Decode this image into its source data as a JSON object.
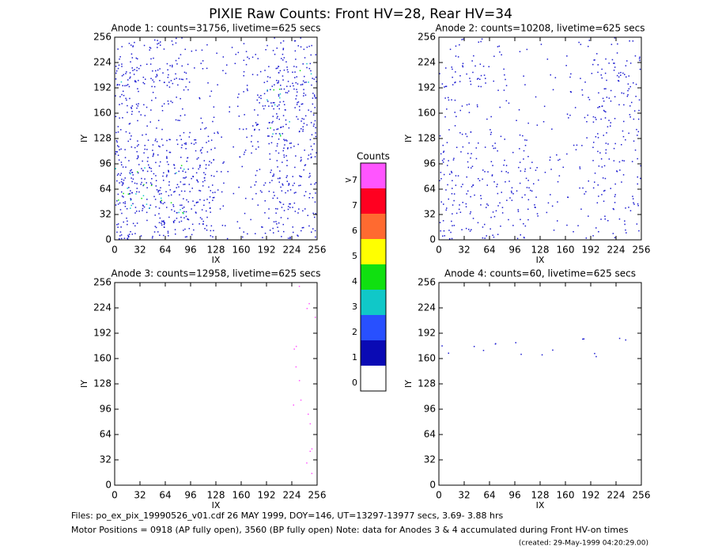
{
  "title": "PIXIE Raw Counts:  Front HV=28, Rear HV=34",
  "chart_data": [
    {
      "type": "density",
      "title": "Anode 1: counts=31756, livetime=625 secs",
      "x_label": "IX",
      "y_label": "IY",
      "xlim": [
        0,
        256
      ],
      "ylim": [
        0,
        256
      ],
      "xticks": [
        0,
        32,
        64,
        96,
        128,
        160,
        192,
        224,
        256
      ],
      "yticks": [
        0,
        32,
        64,
        96,
        128,
        160,
        192,
        224,
        256
      ],
      "color": "#1a1ad0",
      "density": [
        [
          0.3,
          0.3,
          0.2,
          0.1,
          0.1,
          0.2,
          0.3,
          0.3
        ],
        [
          0.8,
          0.5,
          0.6,
          0.1,
          0.1,
          0.2,
          0.6,
          0.7
        ],
        [
          0.5,
          0.2,
          0.2,
          0.1,
          0.1,
          0.3,
          0.7,
          0.6
        ],
        [
          0.3,
          0.2,
          0.2,
          0.2,
          0.1,
          0.3,
          0.7,
          0.5
        ],
        [
          0.6,
          0.5,
          0.5,
          0.5,
          0.1,
          0.2,
          0.6,
          0.4
        ],
        [
          0.8,
          0.7,
          0.7,
          0.6,
          0.1,
          0.2,
          0.5,
          0.4
        ],
        [
          0.8,
          0.7,
          0.7,
          0.6,
          0.1,
          0.2,
          0.5,
          0.4
        ],
        [
          0.6,
          0.5,
          0.5,
          0.4,
          0.1,
          0.2,
          0.4,
          0.3
        ]
      ]
    },
    {
      "type": "density",
      "title": "Anode 2: counts=10208, livetime=625 secs",
      "x_label": "IX",
      "y_label": "IY",
      "xlim": [
        0,
        256
      ],
      "ylim": [
        0,
        256
      ],
      "xticks": [
        0,
        32,
        64,
        96,
        128,
        160,
        192,
        224,
        256
      ],
      "yticks": [
        0,
        32,
        64,
        96,
        128,
        160,
        192,
        224,
        256
      ],
      "color": "#1a1ad0",
      "density": [
        [
          0.15,
          0.1,
          0.1,
          0.05,
          0.05,
          0.1,
          0.15,
          0.2
        ],
        [
          0.4,
          0.4,
          0.1,
          0.05,
          0.05,
          0.1,
          0.3,
          0.4
        ],
        [
          0.2,
          0.1,
          0.1,
          0.05,
          0.05,
          0.15,
          0.4,
          0.3
        ],
        [
          0.15,
          0.1,
          0.1,
          0.1,
          0.05,
          0.15,
          0.35,
          0.25
        ],
        [
          0.3,
          0.2,
          0.2,
          0.2,
          0.1,
          0.1,
          0.3,
          0.2
        ],
        [
          0.35,
          0.3,
          0.3,
          0.3,
          0.1,
          0.1,
          0.25,
          0.2
        ],
        [
          0.35,
          0.3,
          0.3,
          0.3,
          0.1,
          0.1,
          0.25,
          0.2
        ],
        [
          0.3,
          0.25,
          0.2,
          0.2,
          0.05,
          0.1,
          0.2,
          0.15
        ]
      ]
    },
    {
      "type": "density",
      "title": "Anode 3: counts=12958, livetime=625 secs",
      "x_label": "IX",
      "y_label": "IY",
      "xlim": [
        0,
        256
      ],
      "ylim": [
        0,
        256
      ],
      "xticks": [
        0,
        32,
        64,
        96,
        128,
        160,
        192,
        224,
        256
      ],
      "yticks": [
        0,
        32,
        64,
        96,
        128,
        160,
        192,
        224,
        256
      ],
      "color": "#ff55ff",
      "density": [
        [
          0,
          0,
          0,
          0,
          0,
          0,
          0,
          0.05
        ],
        [
          0,
          0,
          0,
          0,
          0,
          0,
          0,
          0.05
        ],
        [
          0,
          0,
          0,
          0,
          0,
          0,
          0,
          0.05
        ],
        [
          0,
          0,
          0,
          0,
          0,
          0,
          0,
          0.05
        ],
        [
          0,
          0,
          0,
          0,
          0,
          0,
          0,
          0.05
        ],
        [
          0,
          0,
          0,
          0,
          0,
          0,
          0,
          0.05
        ],
        [
          0,
          0,
          0,
          0,
          0,
          0,
          0,
          0.05
        ],
        [
          0,
          0,
          0,
          0,
          0,
          0,
          0,
          0.05
        ]
      ]
    },
    {
      "type": "density",
      "title": "Anode 4: counts=60, livetime=625 secs",
      "x_label": "IX",
      "y_label": "IY",
      "xlim": [
        0,
        256
      ],
      "ylim": [
        0,
        256
      ],
      "xticks": [
        0,
        32,
        64,
        96,
        128,
        160,
        192,
        224,
        256
      ],
      "yticks": [
        0,
        32,
        64,
        96,
        128,
        160,
        192,
        224,
        256
      ],
      "color": "#1a1ad0",
      "density": [
        [
          0,
          0,
          0,
          0,
          0,
          0,
          0,
          0
        ],
        [
          0,
          0,
          0,
          0,
          0,
          0,
          0,
          0
        ],
        [
          0.05,
          0.05,
          0.05,
          0.05,
          0.05,
          0.05,
          0.05,
          0.05
        ],
        [
          0,
          0,
          0,
          0,
          0,
          0,
          0,
          0
        ],
        [
          0,
          0,
          0,
          0,
          0,
          0,
          0,
          0
        ],
        [
          0,
          0,
          0,
          0,
          0,
          0,
          0,
          0
        ],
        [
          0,
          0,
          0,
          0,
          0,
          0,
          0,
          0
        ],
        [
          0,
          0,
          0,
          0,
          0,
          0,
          0,
          0
        ]
      ]
    }
  ],
  "colorbar": {
    "title": "Counts",
    "labels": [
      ">7",
      "7",
      "6",
      "5",
      "4",
      "3",
      "2",
      "1",
      "0"
    ],
    "colors": [
      "#ff55ff",
      "#ff0020",
      "#ff6a30",
      "#ffff00",
      "#10e010",
      "#10c8c8",
      "#2850ff",
      "#0a0ab4",
      "#ffffff"
    ]
  },
  "footer": [
    "Files: po_ex_pix_19990526_v01.cdf    26 MAY 1999, DOY=146, UT=13297-13977 secs,  3.69- 3.88 hrs",
    "Motor Positions = 0918 (AP fully open), 3560 (BP fully open)    Note: data for Anodes 3 & 4 accumulated during Front HV-on times",
    "(created: 29-May-1999 04:20:29.00)"
  ]
}
